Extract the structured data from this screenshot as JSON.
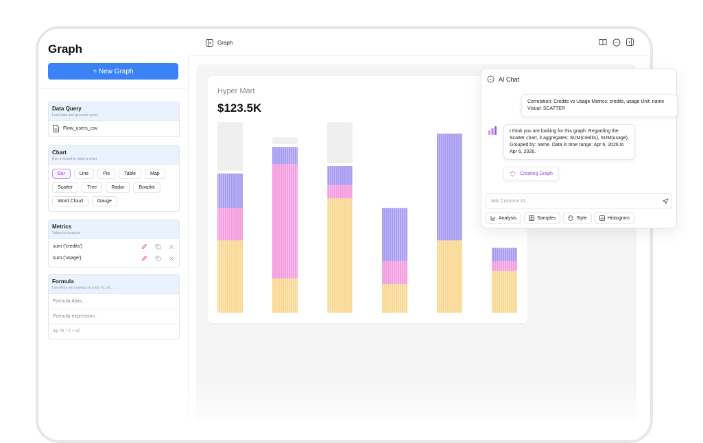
{
  "sidebar": {
    "title": "Graph",
    "new_button": "+ New Graph",
    "data_query": {
      "title": "Data Query",
      "subtitle": "Load data and generate query",
      "file": "Flow_users_csv"
    },
    "chart": {
      "title": "Chart",
      "subtitle": "Run a wizard to make a chart",
      "types": [
        "Bar",
        "Line",
        "Pie",
        "Table",
        "Map",
        "Scatter",
        "Tree",
        "Radar",
        "Boxplot",
        "Word Cloud",
        "Gauge"
      ],
      "selected": "Bar"
    },
    "metrics": {
      "title": "Metrics",
      "subtitle": "Values to compute",
      "items": [
        "sum ('credits')",
        "sum ('usage')"
      ]
    },
    "formula": {
      "title": "Formula",
      "subtitle": "Use #N to ref a metrics in a list: #1, #2...",
      "alias_placeholder": "Formula Alias...",
      "expression_placeholder": "Formula expression..",
      "example": "eg: #1 * 2 + #2"
    }
  },
  "topbar": {
    "title": "Graph",
    "icons": [
      "book-icon",
      "chat-bubble-icon",
      "panel-right-icon"
    ]
  },
  "chart_card": {
    "subtitle": "Hyper Mart",
    "value": "$123.5K"
  },
  "chart_data": {
    "type": "bar",
    "stacked": true,
    "categories": [
      "",
      "",
      "",
      "",
      "",
      ""
    ],
    "series": [
      {
        "color": "#f9d994",
        "values": [
          0.38,
          0.18,
          0.6,
          0.15,
          0.38,
          0.22
        ]
      },
      {
        "color": "#f49de0",
        "values": [
          0.17,
          0.6,
          0.07,
          0.12,
          0.0,
          0.05
        ]
      },
      {
        "color": "#a79cf1",
        "values": [
          0.18,
          0.09,
          0.1,
          0.28,
          0.56,
          0.07
        ]
      }
    ],
    "track_heights": [
      1.0,
      0.92,
      1.0,
      0.4,
      0.92,
      0.33
    ],
    "track_color": "#efefef",
    "ylim": [
      0,
      1
    ],
    "grid": false,
    "legend": "none"
  },
  "ai_chat": {
    "title": "AI Chat",
    "user_message": "Correlation: Credits vs Usage Metrics: credits, usage Unit: name Visual: SCATTER",
    "bot_message": "I think you are looking for this graph: Regarding the Scatter chart, it aggregates: SUM(credits), SUM(usage). Grouped by: name. Data in time range: Apr 6, 2026 to Apr 6, 2026.",
    "status": "Creating Graph",
    "input_placeholder": "Ask Columns AI...",
    "tools": [
      "Analysis",
      "Samples",
      "Style",
      "Histogram"
    ]
  },
  "colors": {
    "primary": "#3b82f6",
    "accent_purple": "#9d45e8",
    "card_head": "#eaf2fe"
  }
}
